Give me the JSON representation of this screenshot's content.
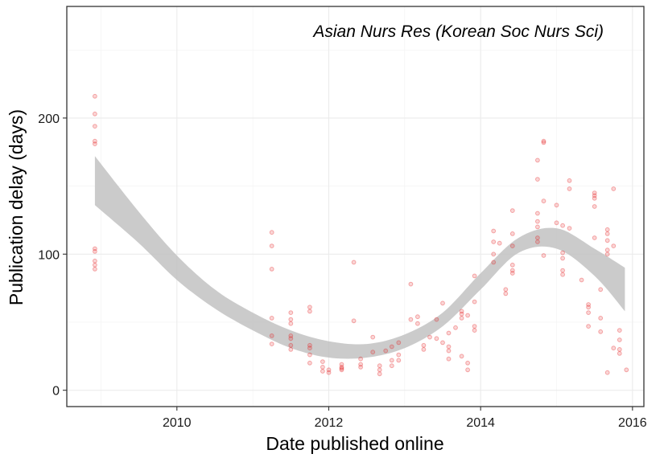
{
  "chart_data": {
    "type": "scatter",
    "title": "Asian Nurs Res (Korean Soc Nurs Sci)",
    "xlabel": "Date published online",
    "ylabel": "Publication delay (days)",
    "xlim": [
      2008.55,
      2016.15
    ],
    "ylim": [
      -12,
      282
    ],
    "x_ticks": [
      2010,
      2012,
      2014,
      2016
    ],
    "x_tick_labels": [
      "2010",
      "2012",
      "2014",
      "2016"
    ],
    "y_ticks": [
      0,
      100,
      200
    ],
    "y_tick_labels": [
      "0",
      "100",
      "200"
    ],
    "grid": true,
    "point_color": "#E41A1C",
    "band_color": "#BEBEBE",
    "points": [
      [
        2008.92,
        216
      ],
      [
        2008.92,
        203
      ],
      [
        2008.92,
        194
      ],
      [
        2008.92,
        183
      ],
      [
        2008.92,
        181
      ],
      [
        2008.92,
        104
      ],
      [
        2008.92,
        102
      ],
      [
        2008.92,
        95
      ],
      [
        2008.92,
        92
      ],
      [
        2008.92,
        89
      ],
      [
        2011.25,
        116
      ],
      [
        2011.25,
        106
      ],
      [
        2011.25,
        89
      ],
      [
        2011.25,
        53
      ],
      [
        2011.25,
        40
      ],
      [
        2011.25,
        34
      ],
      [
        2011.5,
        57
      ],
      [
        2011.5,
        52
      ],
      [
        2011.5,
        49
      ],
      [
        2011.5,
        40
      ],
      [
        2011.5,
        38
      ],
      [
        2011.5,
        33
      ],
      [
        2011.5,
        30
      ],
      [
        2011.75,
        61
      ],
      [
        2011.75,
        58
      ],
      [
        2011.75,
        33
      ],
      [
        2011.75,
        31
      ],
      [
        2011.75,
        26
      ],
      [
        2011.75,
        20
      ],
      [
        2011.92,
        21
      ],
      [
        2011.92,
        17
      ],
      [
        2011.92,
        14
      ],
      [
        2012.0,
        13
      ],
      [
        2012.0,
        15
      ],
      [
        2012.17,
        19
      ],
      [
        2012.17,
        17
      ],
      [
        2012.17,
        16
      ],
      [
        2012.17,
        15
      ],
      [
        2012.33,
        94
      ],
      [
        2012.33,
        51
      ],
      [
        2012.42,
        23
      ],
      [
        2012.42,
        19
      ],
      [
        2012.42,
        17
      ],
      [
        2012.58,
        39
      ],
      [
        2012.58,
        28
      ],
      [
        2012.67,
        18
      ],
      [
        2012.67,
        15
      ],
      [
        2012.67,
        12
      ],
      [
        2012.75,
        29
      ],
      [
        2012.83,
        32
      ],
      [
        2012.83,
        22
      ],
      [
        2012.83,
        18
      ],
      [
        2012.92,
        35
      ],
      [
        2012.92,
        26
      ],
      [
        2012.92,
        22
      ],
      [
        2013.08,
        78
      ],
      [
        2013.08,
        52
      ],
      [
        2013.17,
        54
      ],
      [
        2013.17,
        49
      ],
      [
        2013.25,
        33
      ],
      [
        2013.25,
        30
      ],
      [
        2013.33,
        39
      ],
      [
        2013.42,
        52
      ],
      [
        2013.42,
        38
      ],
      [
        2013.5,
        64
      ],
      [
        2013.5,
        35
      ],
      [
        2013.58,
        42
      ],
      [
        2013.58,
        32
      ],
      [
        2013.58,
        29
      ],
      [
        2013.58,
        23
      ],
      [
        2013.67,
        46
      ],
      [
        2013.75,
        58
      ],
      [
        2013.75,
        56
      ],
      [
        2013.75,
        53
      ],
      [
        2013.75,
        25
      ],
      [
        2013.83,
        55
      ],
      [
        2013.83,
        20
      ],
      [
        2013.83,
        15
      ],
      [
        2013.92,
        84
      ],
      [
        2013.92,
        65
      ],
      [
        2013.92,
        47
      ],
      [
        2013.92,
        44
      ],
      [
        2014.17,
        117
      ],
      [
        2014.17,
        109
      ],
      [
        2014.25,
        108
      ],
      [
        2014.17,
        100
      ],
      [
        2014.17,
        94
      ],
      [
        2014.33,
        74
      ],
      [
        2014.33,
        71
      ],
      [
        2014.42,
        132
      ],
      [
        2014.42,
        115
      ],
      [
        2014.42,
        106
      ],
      [
        2014.42,
        92
      ],
      [
        2014.42,
        88
      ],
      [
        2014.42,
        86
      ],
      [
        2014.75,
        169
      ],
      [
        2014.75,
        155
      ],
      [
        2014.75,
        130
      ],
      [
        2014.75,
        124
      ],
      [
        2014.75,
        120
      ],
      [
        2014.75,
        112
      ],
      [
        2014.75,
        109
      ],
      [
        2014.83,
        183
      ],
      [
        2014.83,
        182
      ],
      [
        2014.83,
        139
      ],
      [
        2014.83,
        99
      ],
      [
        2015.0,
        136
      ],
      [
        2015.0,
        123
      ],
      [
        2015.08,
        121
      ],
      [
        2015.08,
        101
      ],
      [
        2015.08,
        97
      ],
      [
        2015.08,
        88
      ],
      [
        2015.08,
        85
      ],
      [
        2015.17,
        154
      ],
      [
        2015.17,
        148
      ],
      [
        2015.17,
        119
      ],
      [
        2015.33,
        81
      ],
      [
        2015.42,
        63
      ],
      [
        2015.42,
        61
      ],
      [
        2015.42,
        57
      ],
      [
        2015.42,
        47
      ],
      [
        2015.5,
        145
      ],
      [
        2015.5,
        143
      ],
      [
        2015.5,
        141
      ],
      [
        2015.5,
        135
      ],
      [
        2015.5,
        112
      ],
      [
        2015.58,
        74
      ],
      [
        2015.58,
        53
      ],
      [
        2015.58,
        43
      ],
      [
        2015.67,
        118
      ],
      [
        2015.67,
        115
      ],
      [
        2015.67,
        110
      ],
      [
        2015.67,
        103
      ],
      [
        2015.67,
        100
      ],
      [
        2015.67,
        13
      ],
      [
        2015.75,
        148
      ],
      [
        2015.75,
        106
      ],
      [
        2015.75,
        31
      ],
      [
        2015.83,
        44
      ],
      [
        2015.83,
        37
      ],
      [
        2015.83,
        30
      ],
      [
        2015.83,
        27
      ],
      [
        2015.92,
        15
      ]
    ],
    "band": {
      "x": [
        2008.92,
        2009.5,
        2010.0,
        2010.5,
        2011.0,
        2011.5,
        2012.0,
        2012.5,
        2013.0,
        2013.5,
        2014.0,
        2014.5,
        2015.0,
        2015.5,
        2015.9
      ],
      "lower": [
        136,
        108,
        81,
        60,
        44,
        31,
        24,
        24,
        31,
        47,
        74,
        101,
        104,
        84,
        58
      ],
      "upper": [
        172,
        131,
        99,
        74,
        57,
        44,
        36,
        34,
        41,
        57,
        86,
        112,
        119,
        104,
        90
      ]
    }
  }
}
